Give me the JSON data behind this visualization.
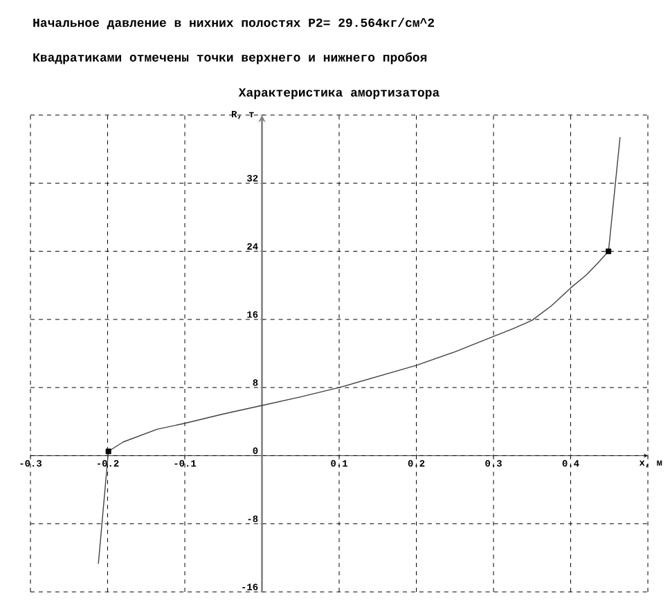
{
  "chart_data": {
    "type": "line",
    "title": "Характеристика амортизатора",
    "xlabel": "x, м",
    "ylabel": "R, т",
    "annotations": [
      "Начальное давление в нихних полостях P2= 29.564кг/см^2",
      "Квадратиками отмечены точки верхнего и нижнего пробоя"
    ],
    "xlim": [
      -0.3,
      0.5
    ],
    "ylim": [
      -16,
      40
    ],
    "xticks": [
      -0.3,
      -0.2,
      -0.1,
      {
        "value": 0,
        "label": null
      },
      0.1,
      0.2,
      0.3,
      0.4,
      {
        "value": 0.5,
        "label": null
      }
    ],
    "yticks": [
      -16,
      -8,
      0,
      8,
      16,
      24,
      32,
      {
        "value": 40,
        "label": null
      }
    ],
    "grid": true,
    "series": [
      {
        "color": "#404040",
        "marker": "none",
        "line_style": "solid",
        "x": [
          -0.212,
          -0.199,
          -0.18,
          -0.136,
          -0.1,
          -0.05,
          0,
          0.05,
          0.1,
          0.15,
          0.2,
          0.25,
          0.3,
          0.325,
          0.35,
          0.375,
          0.4,
          0.42,
          0.435,
          0.449,
          0.464
        ],
        "values": [
          -12.7,
          0.5,
          1.6,
          3.1,
          3.8,
          4.9,
          5.9,
          6.9,
          8,
          9.3,
          10.6,
          12.2,
          14,
          14.9,
          15.9,
          17.6,
          19.7,
          21.2,
          22.6,
          24,
          37.4
        ]
      },
      {
        "type": "scatter",
        "color": "#000000",
        "marker": "square",
        "x": [
          -0.199,
          0.449
        ],
        "values": [
          0.5,
          24
        ]
      }
    ]
  }
}
